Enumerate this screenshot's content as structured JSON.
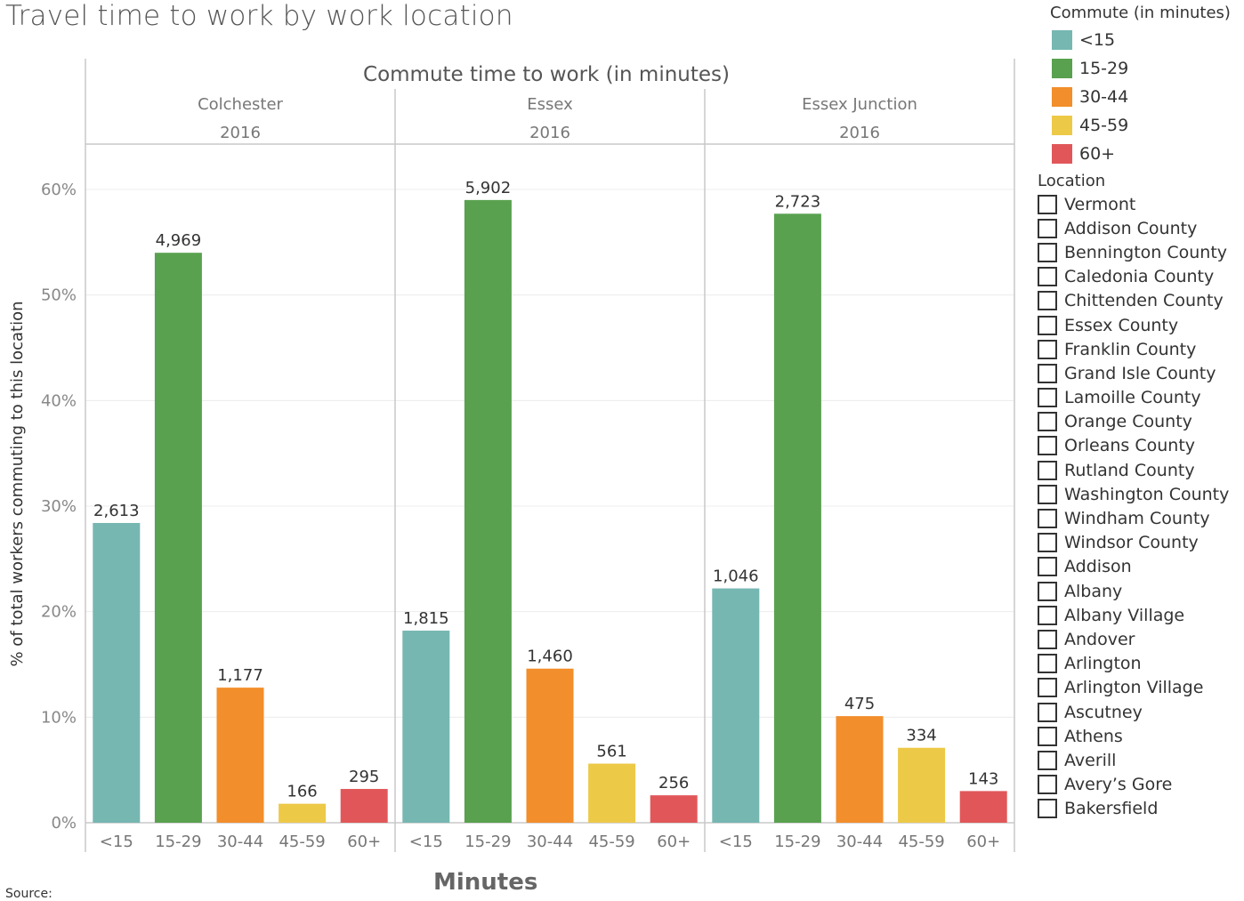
{
  "title": "Travel time to work by work location",
  "source_label": "Source:",
  "chart_data": {
    "type": "bar",
    "header_title": "Commute time to work (in minutes)",
    "ylabel": "% of total workers commuting to this location",
    "xlabel": "Minutes",
    "ylim": [
      0,
      0.6
    ],
    "yticks": [
      0,
      0.1,
      0.2,
      0.3,
      0.4,
      0.5,
      0.6
    ],
    "ytick_labels": [
      "0%",
      "10%",
      "20%",
      "30%",
      "40%",
      "50%",
      "60%"
    ],
    "categories": [
      "<15",
      "15-29",
      "30-44",
      "45-59",
      "60+"
    ],
    "colors": [
      "#76b7b2",
      "#59a14f",
      "#f28e2b",
      "#edc948",
      "#e15759"
    ],
    "panels": [
      {
        "location": "Colchester",
        "year": "2016",
        "percent": [
          0.284,
          0.54,
          0.128,
          0.018,
          0.032
        ],
        "counts": [
          "2,613",
          "4,969",
          "1,177",
          "166",
          "295"
        ]
      },
      {
        "location": "Essex",
        "year": "2016",
        "percent": [
          0.182,
          0.59,
          0.146,
          0.056,
          0.026
        ],
        "counts": [
          "1,815",
          "5,902",
          "1,460",
          "561",
          "256"
        ]
      },
      {
        "location": "Essex Junction",
        "year": "2016",
        "percent": [
          0.222,
          0.577,
          0.101,
          0.071,
          0.03
        ],
        "counts": [
          "1,046",
          "2,723",
          "475",
          "334",
          "143"
        ]
      }
    ]
  },
  "legend": {
    "title": "Commute (in minutes)",
    "items": [
      {
        "label": "<15",
        "color": "#76b7b2"
      },
      {
        "label": "15-29",
        "color": "#59a14f"
      },
      {
        "label": "30-44",
        "color": "#f28e2b"
      },
      {
        "label": "45-59",
        "color": "#edc948"
      },
      {
        "label": "60+",
        "color": "#e15759"
      }
    ]
  },
  "location_filter": {
    "title": "Location",
    "items": [
      "Vermont",
      "Addison County",
      "Bennington County",
      "Caledonia County",
      "Chittenden County",
      "Essex County",
      "Franklin County",
      "Grand Isle County",
      "Lamoille County",
      "Orange County",
      "Orleans County",
      "Rutland County",
      "Washington County",
      "Windham County",
      "Windsor County",
      "Addison",
      "Albany",
      "Albany Village",
      "Andover",
      "Arlington",
      "Arlington Village",
      "Ascutney",
      "Athens",
      "Averill",
      "Avery’s Gore",
      "Bakersfield"
    ]
  }
}
